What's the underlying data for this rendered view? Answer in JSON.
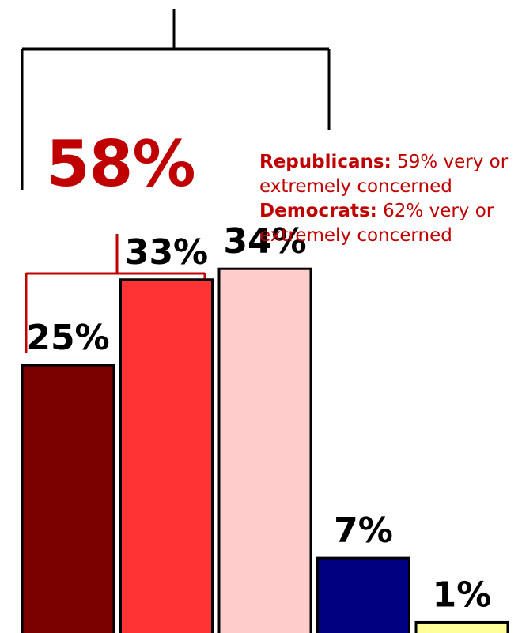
{
  "chart_data": {
    "type": "bar",
    "categories": [
      "",
      "",
      "",
      "",
      ""
    ],
    "values": [
      25,
      33,
      34,
      7,
      1
    ],
    "value_labels": [
      "25%",
      "33%",
      "34%",
      "7%",
      "1%"
    ],
    "colors": [
      "#7b0000",
      "#ff3333",
      "#ffcccc",
      "#000080",
      "#ffff99"
    ],
    "ylim": [
      0,
      38
    ],
    "grid": false
  },
  "annotation": {
    "group_total": "58%",
    "republicans_label": "Republicans:",
    "republicans_text": "59% very or extremely concerned",
    "democrats_label": "Democrats:",
    "democrats_text": "62% very or extremely concerned"
  },
  "colors": {
    "accent": "#c00000"
  }
}
